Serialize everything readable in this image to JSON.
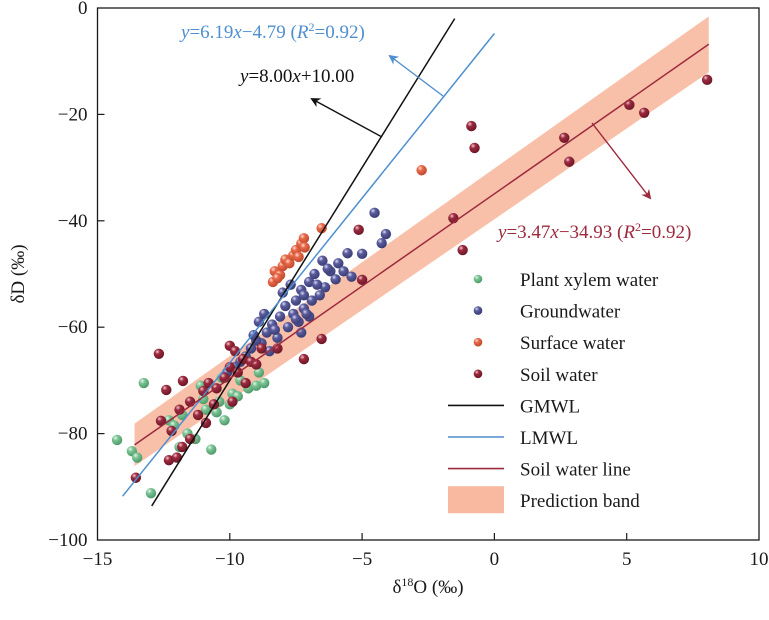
{
  "chart_data": {
    "type": "scatter",
    "title": "",
    "xlabel": "δ18O (‰)",
    "xlabel_parts": {
      "prefix": "δ",
      "sup": "18",
      "suffix": "O (‰)"
    },
    "ylabel": "δD (‰)",
    "xlim": [
      -15,
      10
    ],
    "ylim": [
      -100,
      0
    ],
    "x_ticks": [
      -15,
      -10,
      -5,
      0,
      5,
      10
    ],
    "y_ticks": [
      0,
      -20,
      -40,
      -60,
      -80,
      -100
    ],
    "x_tick_labels": [
      "−15",
      "−10",
      "−5",
      "0",
      "5",
      "10"
    ],
    "y_tick_labels": [
      "0",
      "−20",
      "−40",
      "−60",
      "−80",
      "−100"
    ],
    "grid": false,
    "legend_position": "bottom-right",
    "colors": {
      "plant": "#7cc495",
      "groundwater": "#5a5c9e",
      "surface": "#e8694a",
      "soil": "#9c2a3e",
      "gmwl": "#111111",
      "lmwl": "#4f8fcf",
      "soil_line": "#9c2a3e",
      "band": "#f8b9a0"
    },
    "series": [
      {
        "name": "Plant xylem water",
        "key": "plant",
        "kind": "points",
        "points": [
          [
            -14.26,
            -81.2
          ],
          [
            -13.7,
            -83.3
          ],
          [
            -13.25,
            -70.5
          ],
          [
            -12.98,
            -91.2
          ],
          [
            -13.5,
            -84.5
          ],
          [
            -12.3,
            -77.5
          ],
          [
            -11.9,
            -82.5
          ],
          [
            -11.6,
            -80.0
          ],
          [
            -11.3,
            -81.0
          ],
          [
            -11.0,
            -73.5
          ],
          [
            -10.7,
            -83.0
          ],
          [
            -10.5,
            -76.0
          ],
          [
            -10.2,
            -77.5
          ],
          [
            -10.0,
            -74.5
          ],
          [
            -9.9,
            -72.5
          ],
          [
            -9.6,
            -70.0
          ],
          [
            -9.3,
            -71.5
          ],
          [
            -9.0,
            -71.0
          ],
          [
            -8.7,
            -70.5
          ],
          [
            -8.9,
            -68.5
          ],
          [
            -10.3,
            -69.5
          ],
          [
            -11.1,
            -71.0
          ],
          [
            -10.4,
            -74.0
          ],
          [
            -11.8,
            -76.5
          ],
          [
            -12.1,
            -78.5
          ],
          [
            -10.9,
            -75.5
          ],
          [
            -9.7,
            -73.0
          ]
        ]
      },
      {
        "name": "Groundwater",
        "key": "groundwater",
        "kind": "points",
        "points": [
          [
            -4.53,
            -38.5
          ],
          [
            -4.1,
            -42.5
          ],
          [
            -4.26,
            -44.2
          ],
          [
            -5.55,
            -46.1
          ],
          [
            -5.0,
            -46.2
          ],
          [
            -5.9,
            -48.0
          ],
          [
            -6.2,
            -49.5
          ],
          [
            -6.5,
            -47.5
          ],
          [
            -6.0,
            -51.0
          ],
          [
            -6.4,
            -52.5
          ],
          [
            -6.8,
            -50.0
          ],
          [
            -7.0,
            -51.5
          ],
          [
            -6.6,
            -54.0
          ],
          [
            -7.3,
            -53.0
          ],
          [
            -7.5,
            -55.0
          ],
          [
            -7.2,
            -56.5
          ],
          [
            -7.6,
            -57.5
          ],
          [
            -7.9,
            -56.0
          ],
          [
            -8.1,
            -58.0
          ],
          [
            -7.4,
            -59.0
          ],
          [
            -7.8,
            -60.0
          ],
          [
            -8.4,
            -59.5
          ],
          [
            -8.6,
            -61.0
          ],
          [
            -8.2,
            -62.0
          ],
          [
            -8.8,
            -63.0
          ],
          [
            -9.0,
            -62.5
          ],
          [
            -9.2,
            -64.0
          ],
          [
            -8.5,
            -64.5
          ],
          [
            -9.4,
            -65.5
          ],
          [
            -9.6,
            -66.5
          ],
          [
            -9.8,
            -67.5
          ],
          [
            -10.1,
            -68.5
          ],
          [
            -7.0,
            -58.0
          ],
          [
            -7.3,
            -61.0
          ],
          [
            -6.9,
            -55.0
          ],
          [
            -8.0,
            -53.5
          ],
          [
            -7.7,
            -52.0
          ],
          [
            -6.3,
            -49.0
          ],
          [
            -5.7,
            -49.5
          ],
          [
            -5.4,
            -50.5
          ],
          [
            -8.3,
            -60.5
          ],
          [
            -8.9,
            -59.0
          ],
          [
            -7.1,
            -57.5
          ],
          [
            -7.5,
            -58.5
          ],
          [
            -9.1,
            -61.5
          ],
          [
            -8.7,
            -57.5
          ],
          [
            -6.7,
            -52.0
          ],
          [
            -7.2,
            -54.0
          ]
        ]
      },
      {
        "name": "Surface water",
        "key": "surface",
        "kind": "points",
        "points": [
          [
            -2.75,
            -30.5
          ],
          [
            -6.53,
            -41.4
          ],
          [
            -8.37,
            -51.5
          ],
          [
            -8.3,
            -49.5
          ],
          [
            -8.1,
            -50.2
          ],
          [
            -8.0,
            -48.5
          ],
          [
            -7.9,
            -47.3
          ],
          [
            -7.75,
            -48.0
          ],
          [
            -7.6,
            -46.5
          ],
          [
            -7.5,
            -45.5
          ],
          [
            -7.4,
            -46.8
          ],
          [
            -7.3,
            -44.3
          ],
          [
            -7.2,
            -43.3
          ],
          [
            -7.17,
            -45.0
          ],
          [
            -8.2,
            -50.8
          ]
        ]
      },
      {
        "name": "Soil water",
        "key": "soil",
        "kind": "points",
        "points": [
          [
            8.04,
            -13.5
          ],
          [
            5.1,
            -18.2
          ],
          [
            5.66,
            -19.7
          ],
          [
            2.64,
            -24.4
          ],
          [
            2.83,
            -28.9
          ],
          [
            -0.87,
            -22.2
          ],
          [
            -0.75,
            -26.3
          ],
          [
            -1.55,
            -39.5
          ],
          [
            -1.2,
            -45.5
          ],
          [
            -5.13,
            -41.7
          ],
          [
            -5.0,
            -51.1
          ],
          [
            -6.53,
            -62.2
          ],
          [
            -7.2,
            -66.0
          ],
          [
            -12.68,
            -65.0
          ],
          [
            -11.77,
            -70.1
          ],
          [
            -12.4,
            -71.8
          ],
          [
            -13.55,
            -88.3
          ],
          [
            -12.6,
            -77.6
          ],
          [
            -12.2,
            -79.5
          ],
          [
            -12.3,
            -85.0
          ],
          [
            -11.9,
            -75.5
          ],
          [
            -11.5,
            -74.0
          ],
          [
            -11.0,
            -72.0
          ],
          [
            -11.2,
            -76.5
          ],
          [
            -10.8,
            -70.5
          ],
          [
            -10.5,
            -71.5
          ],
          [
            -10.2,
            -69.5
          ],
          [
            -10.0,
            -67.5
          ],
          [
            -9.7,
            -68.5
          ],
          [
            -9.5,
            -66.0
          ],
          [
            -9.2,
            -66.5
          ],
          [
            -10.0,
            -63.5
          ],
          [
            -9.8,
            -64.5
          ],
          [
            -8.2,
            -64.0
          ],
          [
            -9.4,
            -70.5
          ],
          [
            -11.5,
            -81.0
          ],
          [
            -11.8,
            -82.5
          ],
          [
            -12.0,
            -84.5
          ],
          [
            -10.9,
            -78.0
          ],
          [
            -10.6,
            -74.5
          ],
          [
            -9.9,
            -74.0
          ],
          [
            -8.8,
            -64.0
          ],
          [
            -9.0,
            -67.0
          ]
        ]
      },
      {
        "name": "GMWL",
        "key": "gmwl",
        "kind": "line",
        "slope": 8.0,
        "intercept": 10.0,
        "x_range": [
          -12.95,
          -1.5
        ]
      },
      {
        "name": "LMWL",
        "key": "lmwl",
        "kind": "line",
        "slope": 6.19,
        "intercept": -4.79,
        "x_range": [
          -14.05,
          0.0
        ]
      },
      {
        "name": "Soil water line",
        "key": "soil_line",
        "kind": "line",
        "slope": 3.47,
        "intercept": -34.93,
        "x_range": [
          -13.6,
          8.1
        ]
      },
      {
        "name": "Prediction band",
        "key": "band",
        "kind": "band",
        "slope": 3.47,
        "intercept": -34.93,
        "half_width": 4.2,
        "x_range": [
          -13.6,
          8.1
        ]
      }
    ],
    "annotations": [
      {
        "key": "lmwl",
        "text_parts": [
          "y",
          "=6.19",
          "x",
          "−4.79 (",
          "R",
          "2",
          "=0.92)"
        ],
        "color": "#4f8fcf"
      },
      {
        "key": "gmwl",
        "text_parts": [
          "y",
          "=8.00",
          "x",
          "+10.00"
        ],
        "color": "#111111"
      },
      {
        "key": "soil_line",
        "text_parts": [
          "y",
          "=3.47",
          "x",
          "−34.93 (",
          "R",
          "2",
          "=0.92)"
        ],
        "color": "#9c2a3e"
      }
    ],
    "legend": [
      {
        "label": "Plant xylem water",
        "key": "plant",
        "kind": "marker"
      },
      {
        "label": "Groundwater",
        "key": "groundwater",
        "kind": "marker"
      },
      {
        "label": "Surface water",
        "key": "surface",
        "kind": "marker"
      },
      {
        "label": "Soil water",
        "key": "soil",
        "kind": "marker"
      },
      {
        "label": "GMWL",
        "key": "gmwl",
        "kind": "line"
      },
      {
        "label": "LMWL",
        "key": "lmwl",
        "kind": "line"
      },
      {
        "label": "Soil water line",
        "key": "soil_line",
        "kind": "line"
      },
      {
        "label": "Prediction band",
        "key": "band",
        "kind": "patch"
      }
    ]
  }
}
